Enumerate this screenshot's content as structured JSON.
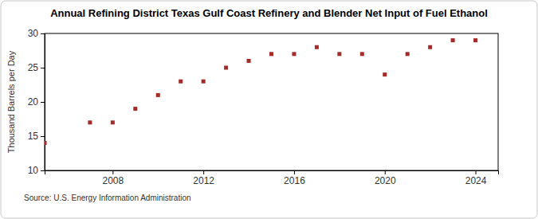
{
  "chart_data": {
    "type": "scatter",
    "title": "Annual Refining District Texas Gulf Coast Refinery and Blender Net Input of Fuel Ethanol",
    "y_label": "Thousand Barrels per Day",
    "source": "Source: U.S. Energy Information Administration",
    "x": [
      2005,
      2007,
      2008,
      2009,
      2010,
      2011,
      2012,
      2013,
      2014,
      2015,
      2016,
      2017,
      2018,
      2019,
      2020,
      2021,
      2022,
      2023,
      2024
    ],
    "values": [
      14,
      17,
      17,
      19,
      21,
      23,
      23,
      25,
      26,
      27,
      27,
      28,
      27,
      27,
      24,
      27,
      28,
      29,
      29
    ],
    "color": "#a52a2a",
    "marker": "square",
    "xlim": [
      2005,
      2025
    ],
    "xticks": [
      2008,
      2012,
      2016,
      2020,
      2024
    ],
    "ylim": [
      10,
      30
    ],
    "yticks": [
      10,
      15,
      20,
      25,
      30
    ],
    "grid": false
  }
}
